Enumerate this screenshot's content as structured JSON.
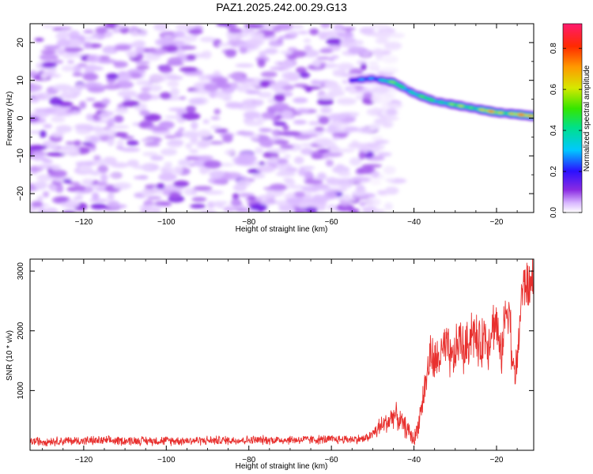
{
  "title": "PAZ1.2025.242.00.29.G13",
  "chart_data": [
    {
      "type": "heatmap",
      "xlabel": "Height of straight line (km)",
      "ylabel": "Frequency (Hz)",
      "xlim": [
        -133,
        -11
      ],
      "ylim": [
        -25,
        25
      ],
      "xticks": [
        -120,
        -100,
        -80,
        -60,
        -40,
        -20
      ],
      "yticks": [
        -20,
        -10,
        0,
        10,
        20
      ],
      "noise_region": {
        "x_from": -133,
        "x_to": -50,
        "level": 0.12
      },
      "ridge": {
        "x": [
          -55,
          -50,
          -45,
          -40,
          -35,
          -30,
          -25,
          -20,
          -15,
          -11
        ],
        "freq": [
          10,
          10.5,
          9.5,
          6.5,
          4.5,
          3.5,
          2.5,
          1.5,
          1.0,
          0.5
        ],
        "amp": [
          0.22,
          0.38,
          0.55,
          0.5,
          0.55,
          0.6,
          0.7,
          0.8,
          0.82,
          0.85
        ]
      },
      "colorbar": {
        "label": "Normalized spectral amplitude",
        "range": [
          0.0,
          0.92
        ],
        "ticks": [
          0.0,
          0.2,
          0.4,
          0.6,
          0.8
        ]
      }
    },
    {
      "type": "line",
      "xlabel": "Height of straight line (km)",
      "ylabel": "SNR (10 * v/v)",
      "xlim": [
        -133,
        -11
      ],
      "ylim": [
        0,
        3200
      ],
      "xticks": [
        -120,
        -100,
        -80,
        -60,
        -40,
        -20
      ],
      "yticks": [
        1000,
        2000,
        3000
      ],
      "color": "#e8302e",
      "series": [
        {
          "name": "SNR",
          "x": [
            -133,
            -120,
            -100,
            -80,
            -60,
            -52,
            -50,
            -48,
            -46,
            -45,
            -44,
            -43,
            -42,
            -41,
            -40,
            -39,
            -38,
            -37,
            -36,
            -35,
            -34,
            -33,
            -32,
            -31,
            -30,
            -29,
            -28,
            -27,
            -26,
            -25,
            -24,
            -23,
            -22,
            -21,
            -20,
            -19,
            -18,
            -17,
            -16,
            -15,
            -14,
            -13,
            -12,
            -11
          ],
          "values": [
            150,
            160,
            160,
            170,
            180,
            190,
            270,
            400,
            500,
            600,
            550,
            460,
            380,
            290,
            160,
            420,
            800,
            1200,
            1600,
            1450,
            1550,
            1650,
            1700,
            1500,
            1600,
            1900,
            1650,
            1750,
            2050,
            1850,
            1700,
            1950,
            1800,
            2100,
            2150,
            1500,
            2200,
            2500,
            1300,
            1400,
            2600,
            2800,
            2700,
            3000
          ]
        }
      ]
    }
  ]
}
